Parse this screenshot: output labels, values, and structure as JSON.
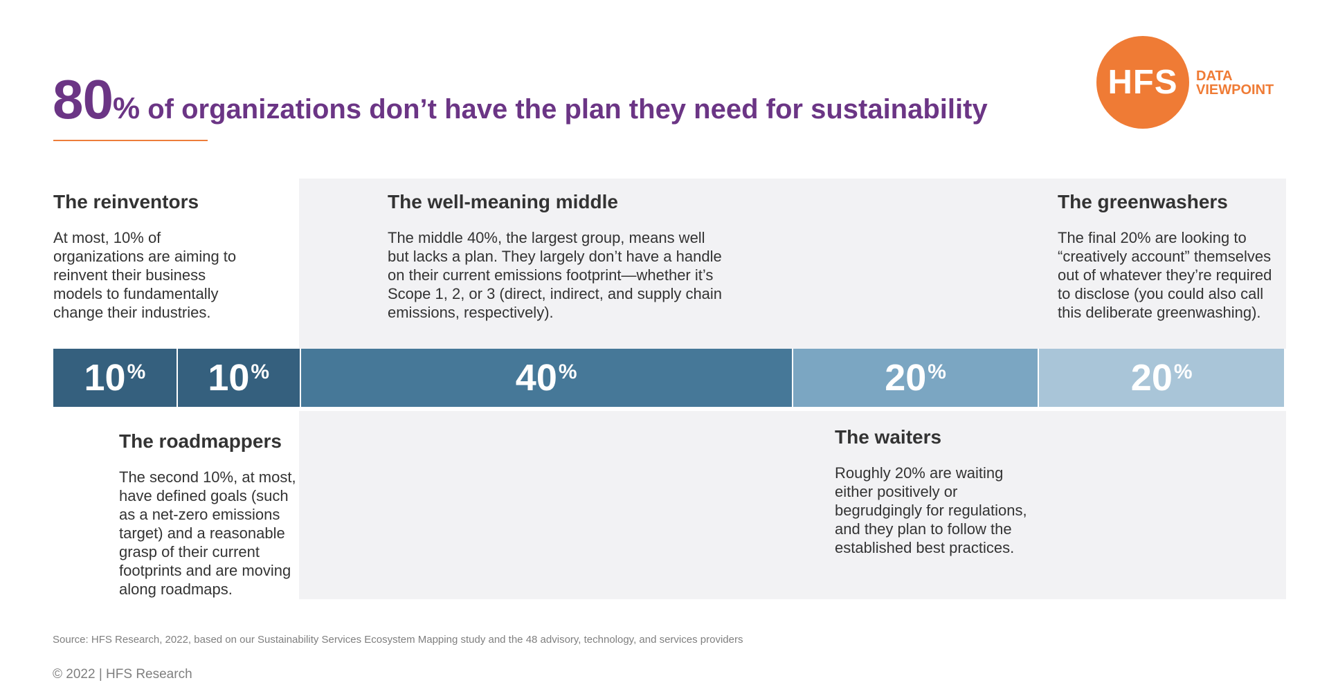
{
  "title": {
    "number": "80",
    "percent_sign": "%",
    "text": " of organizations don’t have the plan they need for sustainability"
  },
  "logo": {
    "mark": "HFS",
    "line1": "DATA",
    "line2": "VIEWPOINT"
  },
  "groups": {
    "reinventors": {
      "title": "The reinventors",
      "desc": "At most, 10% of organizations are aiming to reinvent their business models to fundamentally change their industries."
    },
    "roadmappers": {
      "title": "The roadmappers",
      "desc": "The second 10%, at most, have defined goals (such as a net-zero emissions target) and a reasonable grasp of their current footprints and are moving along roadmaps."
    },
    "middle": {
      "title": "The well-meaning middle",
      "desc": "The middle 40%, the largest group, means well but lacks a plan. They largely don’t have a handle on their current emissions footprint—whether it’s Scope 1, 2, or 3 (direct, indirect, and supply chain emissions, respectively)."
    },
    "waiters": {
      "title": "The waiters",
      "desc": "Roughly 20% are waiting either positively or begrudgingly for regulations, and they plan to follow the established best practices."
    },
    "greenwashers": {
      "title": "The greenwashers",
      "desc": "The final 20% are looking to “creatively account” themselves out of whatever they’re required to disclose (you could also call this deliberate greenwashing)."
    }
  },
  "chart_data": {
    "type": "bar",
    "orientation": "horizontal-stacked",
    "categories": [
      "The reinventors",
      "The roadmappers",
      "The well-meaning middle",
      "The waiters",
      "The greenwashers"
    ],
    "values": [
      10,
      10,
      40,
      20,
      20
    ],
    "labels": [
      "10",
      "10",
      "40",
      "20",
      "20"
    ],
    "unit": "%",
    "colors": [
      "#35607e",
      "#35607e",
      "#467898",
      "#7ba6c2",
      "#a9c5d8"
    ]
  },
  "footer": {
    "source": "Source: HFS Research, 2022, based on our Sustainability Services Ecosystem Mapping study and the 48 advisory, technology, and services providers",
    "copyright": "© 2022 | HFS Research"
  },
  "colors": {
    "title": "#6b3585",
    "accent": "#ef7b35",
    "panel": "#f2f2f4"
  }
}
